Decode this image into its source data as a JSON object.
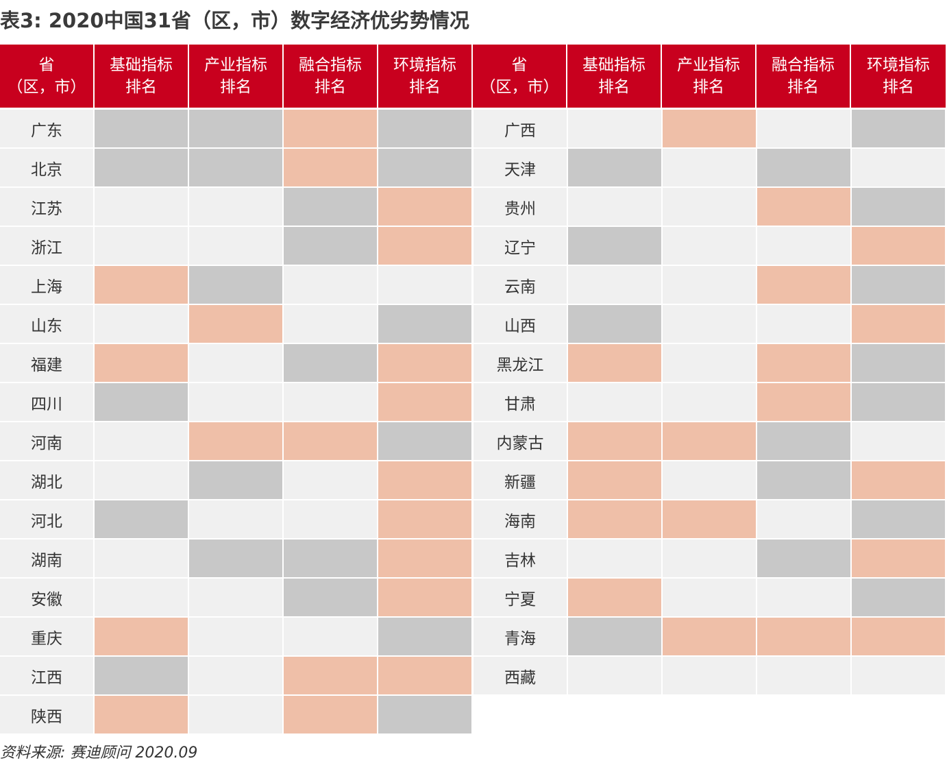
{
  "title": "表3: 2020中国31省（区，市）数字经济优劣势情况",
  "header": {
    "province": "省\n（区，市）",
    "basic": "基础指标\n排名",
    "industry": "产业指标\n排名",
    "fusion": "融合指标\n排名",
    "environment": "环境指标\n排名"
  },
  "colors": {
    "header_red": "#c8001e",
    "neutral": "#f0f0f0",
    "gray": "#c8c8c8",
    "salmon": "#efbfa8"
  },
  "cell_key": {
    "n": "neutral",
    "g": "gray",
    "p": "salmon"
  },
  "left_rows": [
    {
      "name": "广东",
      "cells": [
        "g",
        "g",
        "p",
        "g"
      ]
    },
    {
      "name": "北京",
      "cells": [
        "g",
        "g",
        "p",
        "g"
      ]
    },
    {
      "name": "江苏",
      "cells": [
        "n",
        "n",
        "g",
        "p"
      ]
    },
    {
      "name": "浙江",
      "cells": [
        "n",
        "n",
        "g",
        "p"
      ]
    },
    {
      "name": "上海",
      "cells": [
        "p",
        "g",
        "n",
        "n"
      ]
    },
    {
      "name": "山东",
      "cells": [
        "n",
        "p",
        "n",
        "g"
      ]
    },
    {
      "name": "福建",
      "cells": [
        "p",
        "n",
        "g",
        "p"
      ]
    },
    {
      "name": "四川",
      "cells": [
        "g",
        "n",
        "n",
        "p"
      ]
    },
    {
      "name": "河南",
      "cells": [
        "n",
        "p",
        "p",
        "g"
      ]
    },
    {
      "name": "湖北",
      "cells": [
        "n",
        "g",
        "n",
        "p"
      ]
    },
    {
      "name": "河北",
      "cells": [
        "g",
        "n",
        "n",
        "p"
      ]
    },
    {
      "name": "湖南",
      "cells": [
        "n",
        "g",
        "g",
        "p"
      ]
    },
    {
      "name": "安徽",
      "cells": [
        "n",
        "n",
        "g",
        "p"
      ]
    },
    {
      "name": "重庆",
      "cells": [
        "p",
        "n",
        "n",
        "g"
      ]
    },
    {
      "name": "江西",
      "cells": [
        "g",
        "n",
        "p",
        "p"
      ]
    },
    {
      "name": "陕西",
      "cells": [
        "p",
        "n",
        "p",
        "g"
      ]
    }
  ],
  "right_rows": [
    {
      "name": "广西",
      "cells": [
        "n",
        "p",
        "n",
        "g"
      ]
    },
    {
      "name": "天津",
      "cells": [
        "g",
        "n",
        "g",
        "n"
      ]
    },
    {
      "name": "贵州",
      "cells": [
        "n",
        "n",
        "p",
        "g"
      ]
    },
    {
      "name": "辽宁",
      "cells": [
        "g",
        "n",
        "n",
        "p"
      ]
    },
    {
      "name": "云南",
      "cells": [
        "n",
        "n",
        "p",
        "g"
      ]
    },
    {
      "name": "山西",
      "cells": [
        "g",
        "n",
        "n",
        "p"
      ]
    },
    {
      "name": "黑龙江",
      "cells": [
        "p",
        "n",
        "p",
        "g"
      ]
    },
    {
      "name": "甘肃",
      "cells": [
        "n",
        "n",
        "p",
        "g"
      ]
    },
    {
      "name": "内蒙古",
      "cells": [
        "p",
        "p",
        "g",
        "n"
      ]
    },
    {
      "name": "新疆",
      "cells": [
        "p",
        "n",
        "g",
        "p"
      ]
    },
    {
      "name": "海南",
      "cells": [
        "p",
        "p",
        "n",
        "g"
      ]
    },
    {
      "name": "吉林",
      "cells": [
        "n",
        "n",
        "g",
        "p"
      ]
    },
    {
      "name": "宁夏",
      "cells": [
        "p",
        "n",
        "n",
        "g"
      ]
    },
    {
      "name": "青海",
      "cells": [
        "g",
        "p",
        "p",
        "p"
      ]
    },
    {
      "name": "西藏",
      "cells": [
        "n",
        "n",
        "n",
        "n"
      ]
    }
  ],
  "source": "资料来源: 赛迪顾问 2020.09"
}
